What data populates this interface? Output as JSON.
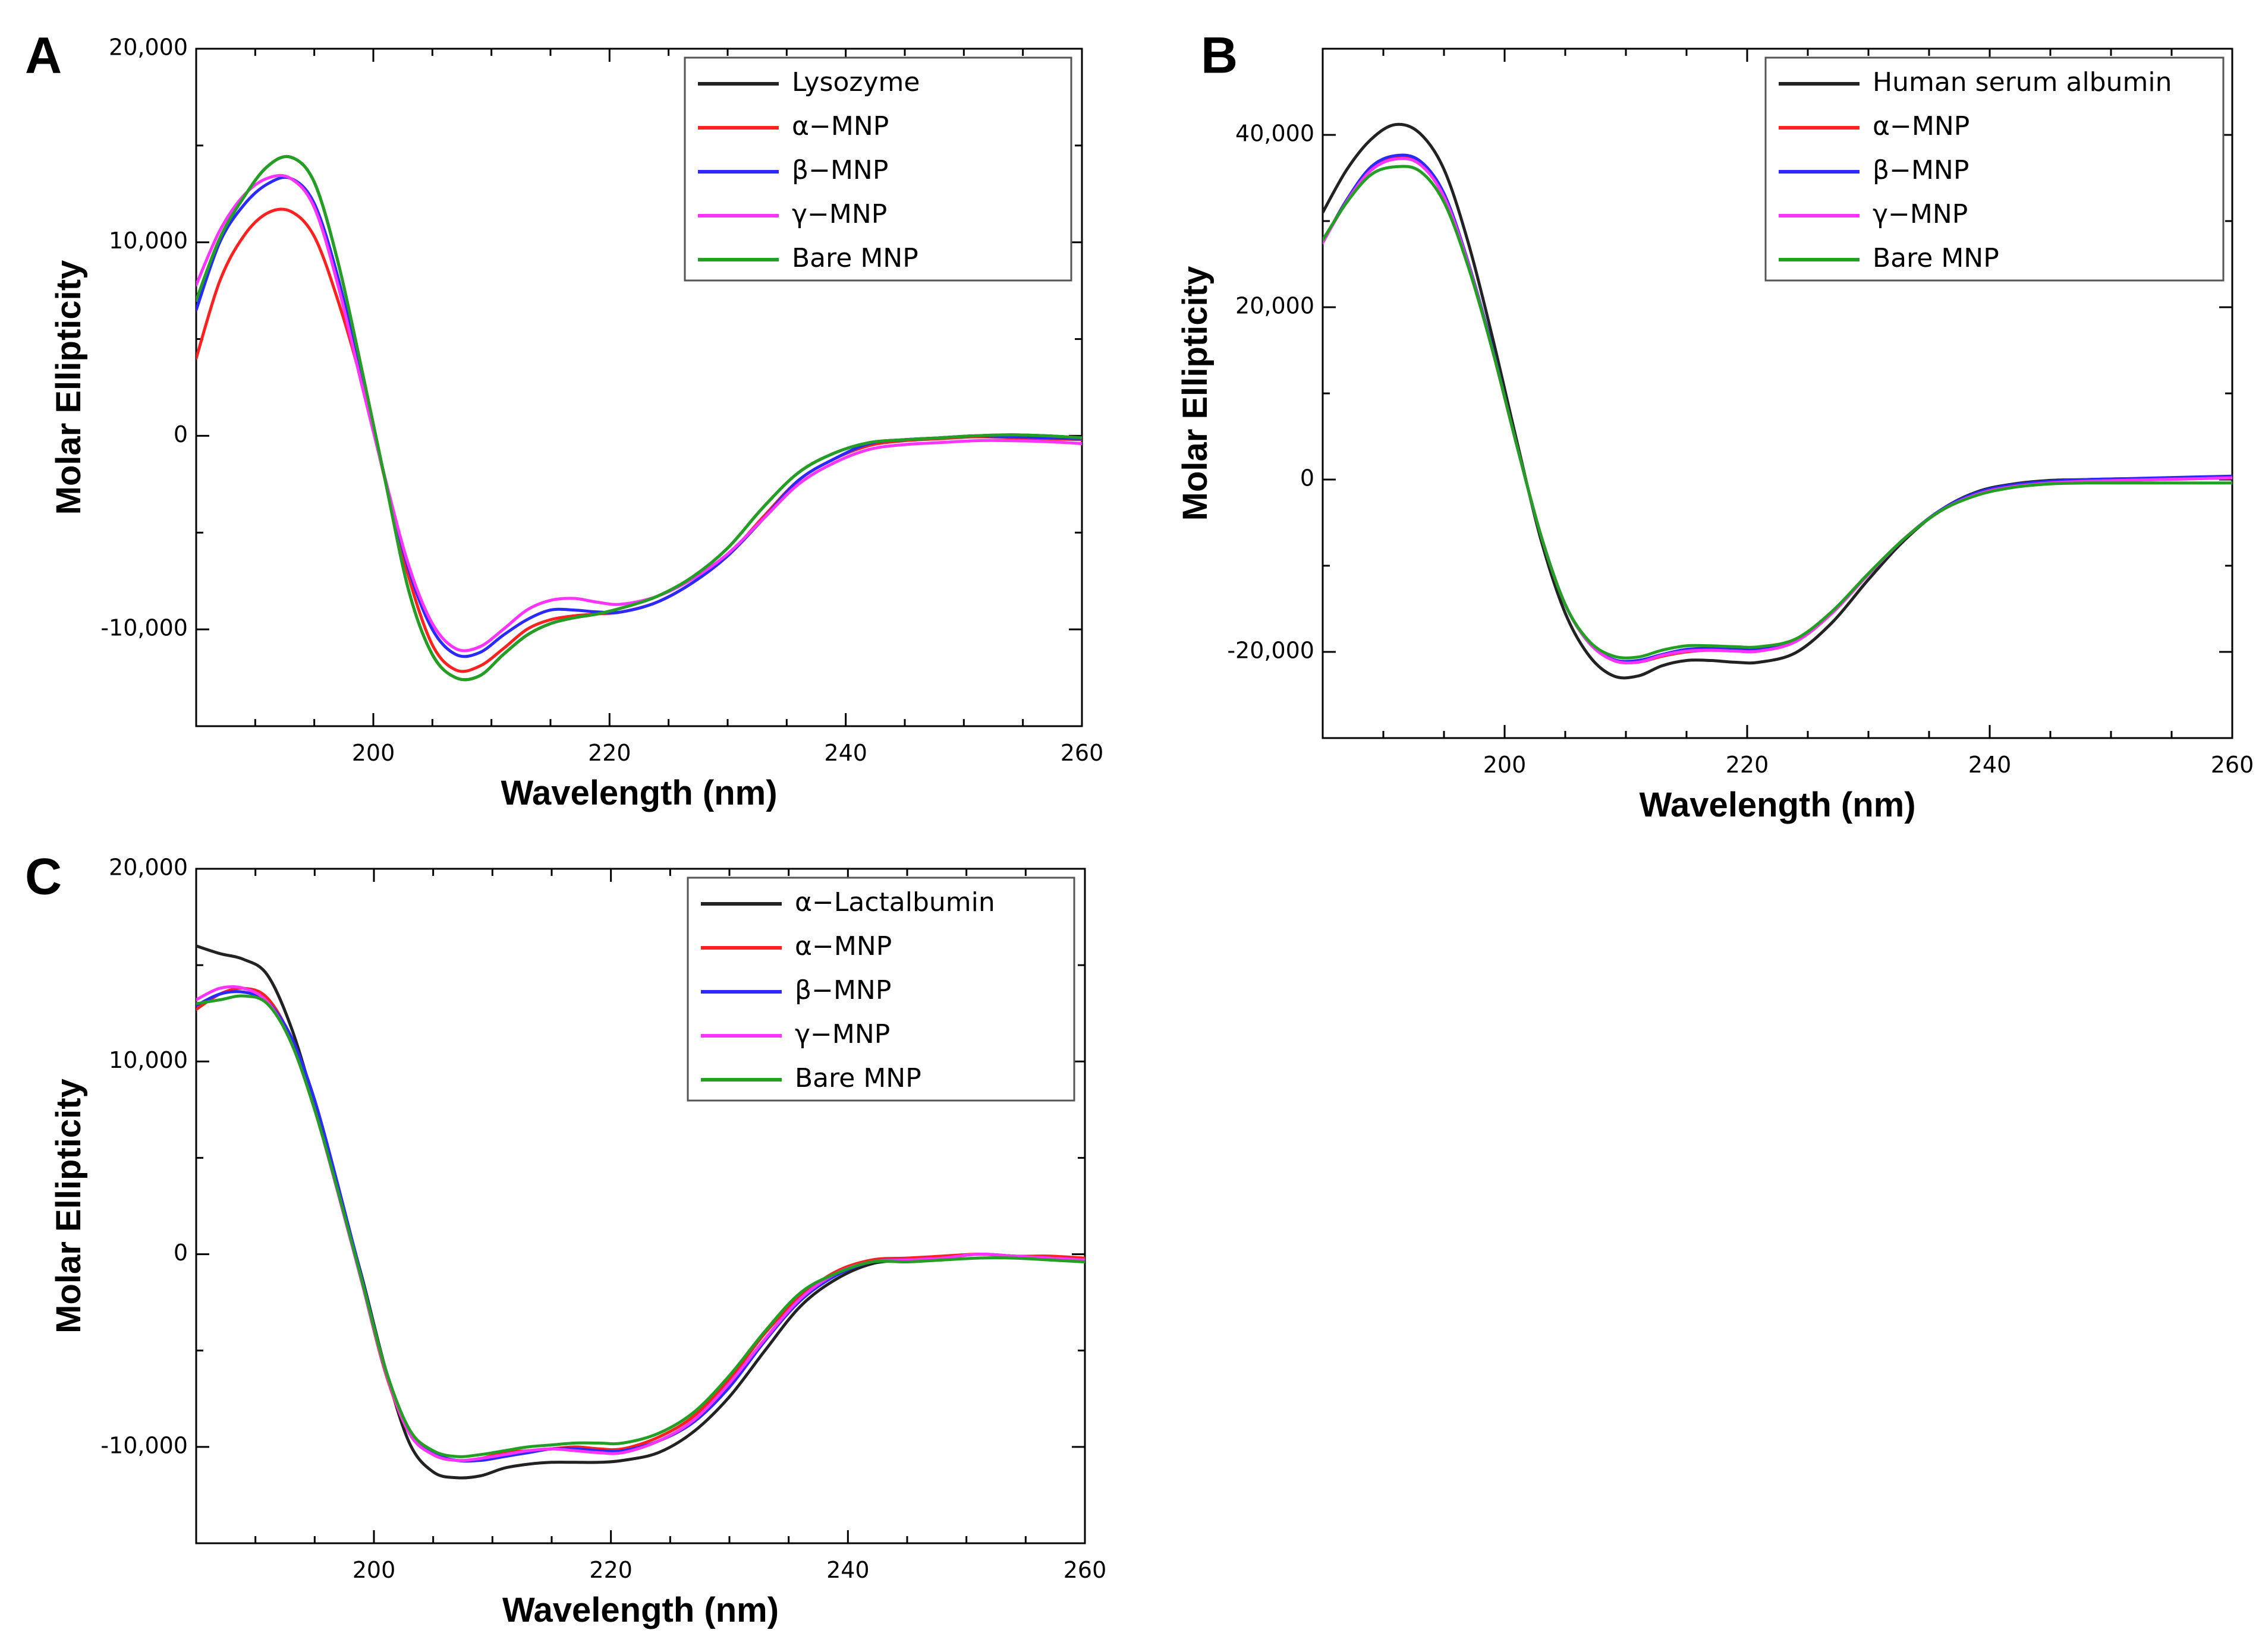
{
  "chart_data": [
    {
      "panel": "A",
      "type": "line",
      "xlabel": "Wavelength (nm)",
      "ylabel": "Molar Ellipticity",
      "xlim": [
        185,
        260
      ],
      "ylim": [
        -15000,
        20000
      ],
      "xticks": [
        200,
        220,
        240,
        260
      ],
      "xtick_labels": [
        "200",
        "220",
        "240",
        "260"
      ],
      "yticks": [
        -10000,
        0,
        10000,
        20000
      ],
      "ytick_labels": [
        "-10,000",
        "0",
        "10,000",
        "20,000"
      ],
      "legend_position": "top-right",
      "x": [
        185,
        187,
        189,
        191,
        193,
        195,
        197,
        199,
        201,
        203,
        205,
        207,
        209,
        211,
        213,
        215,
        217,
        219,
        221,
        224,
        227,
        230,
        233,
        236,
        239,
        242,
        245,
        248,
        251,
        254,
        257,
        260
      ],
      "series": [
        {
          "name": "Lysozyme",
          "color": "#222222",
          "values": [
            null,
            null,
            null,
            null,
            null,
            null,
            null,
            null,
            null,
            null,
            null,
            null,
            null,
            null,
            null,
            null,
            null,
            null,
            null,
            null,
            null,
            null,
            null,
            null,
            null,
            null,
            null,
            null,
            null,
            null,
            null,
            null
          ]
        },
        {
          "name": "α−MNP",
          "color": "#ff2020",
          "values": [
            4000,
            8000,
            10300,
            11500,
            11600,
            10300,
            7000,
            2800,
            -2300,
            -7300,
            -10800,
            -12100,
            -11900,
            -11000,
            -10000,
            -9500,
            -9300,
            -9200,
            -9100,
            -8600,
            -7600,
            -6200,
            -4200,
            -2300,
            -1200,
            -500,
            -250,
            -150,
            -50,
            -100,
            -150,
            -200
          ]
        },
        {
          "name": "β−MNP",
          "color": "#2a2aff",
          "values": [
            6500,
            10000,
            11900,
            13000,
            13300,
            12000,
            8200,
            3000,
            -2200,
            -6900,
            -10000,
            -11300,
            -11200,
            -10300,
            -9500,
            -9000,
            -9000,
            -9100,
            -9100,
            -8600,
            -7600,
            -6200,
            -4300,
            -2300,
            -1200,
            -400,
            -200,
            -100,
            0,
            -50,
            -100,
            -150
          ]
        },
        {
          "name": "γ−MNP",
          "color": "#ff33ff",
          "values": [
            7800,
            10600,
            12400,
            13300,
            13300,
            11800,
            7800,
            2700,
            -2200,
            -6700,
            -9700,
            -11000,
            -10900,
            -10000,
            -9000,
            -8500,
            -8400,
            -8600,
            -8700,
            -8300,
            -7400,
            -6100,
            -4300,
            -2500,
            -1400,
            -700,
            -450,
            -350,
            -250,
            -250,
            -300,
            -400
          ]
        },
        {
          "name": "Bare MNP",
          "color": "#23a023",
          "values": [
            7000,
            10200,
            12300,
            13900,
            14400,
            13100,
            9000,
            3500,
            -2300,
            -8000,
            -11300,
            -12500,
            -12400,
            -11300,
            -10300,
            -9700,
            -9400,
            -9200,
            -8900,
            -8300,
            -7300,
            -5800,
            -3700,
            -1900,
            -900,
            -350,
            -200,
            -100,
            0,
            50,
            0,
            -100
          ]
        }
      ]
    },
    {
      "panel": "B",
      "type": "line",
      "xlabel": "Wavelength (nm)",
      "ylabel": "Molar Ellipticity",
      "xlim": [
        185,
        260
      ],
      "ylim": [
        -30000,
        50000
      ],
      "xticks": [
        200,
        220,
        240,
        260
      ],
      "xtick_labels": [
        "200",
        "220",
        "240",
        "260"
      ],
      "yticks": [
        -20000,
        0,
        20000,
        40000
      ],
      "ytick_labels": [
        "-20,000",
        "0",
        "20,000",
        "40,000"
      ],
      "legend_position": "top-right",
      "x": [
        185,
        187,
        189,
        191,
        193,
        195,
        197,
        199,
        201,
        203,
        205,
        207,
        209,
        211,
        213,
        215,
        217,
        219,
        221,
        224,
        227,
        230,
        233,
        236,
        239,
        242,
        245,
        248,
        251,
        254,
        257,
        260
      ],
      "series": [
        {
          "name": "Human serum albumin",
          "color": "#222222",
          "values": [
            31000,
            36000,
            39500,
            41200,
            40200,
            36000,
            27500,
            16500,
            4500,
            -7000,
            -15500,
            -20500,
            -22800,
            -22800,
            -21600,
            -21000,
            -21000,
            -21200,
            -21200,
            -20100,
            -16600,
            -11600,
            -7000,
            -3500,
            -1400,
            -500,
            -100,
            0,
            100,
            100,
            200,
            300
          ]
        },
        {
          "name": "α−MNP",
          "color": "#ff2020",
          "values": [
            27500,
            32500,
            36000,
            37300,
            36800,
            33000,
            25000,
            15000,
            4000,
            -6500,
            -14500,
            -19000,
            -21000,
            -21200,
            -20500,
            -20000,
            -19800,
            -19900,
            -19900,
            -18800,
            -15500,
            -11000,
            -6800,
            -3600,
            -1700,
            -800,
            -400,
            -200,
            -100,
            0,
            100,
            200
          ]
        },
        {
          "name": "β−MNP",
          "color": "#2a2aff",
          "values": [
            27500,
            32500,
            36300,
            37600,
            37000,
            33200,
            25200,
            15200,
            4000,
            -6500,
            -14500,
            -19000,
            -20900,
            -21000,
            -20300,
            -19700,
            -19600,
            -19700,
            -19700,
            -18700,
            -15400,
            -11000,
            -6800,
            -3500,
            -1500,
            -600,
            -200,
            0,
            100,
            200,
            300,
            400
          ]
        },
        {
          "name": "γ−MNP",
          "color": "#ff33ff",
          "values": [
            27500,
            32300,
            35900,
            37200,
            36600,
            32800,
            25000,
            15000,
            4000,
            -6500,
            -14500,
            -19000,
            -21000,
            -21200,
            -20400,
            -19900,
            -19800,
            -19900,
            -19900,
            -18800,
            -15500,
            -11000,
            -6800,
            -3600,
            -1700,
            -800,
            -400,
            -200,
            -100,
            0,
            100,
            200
          ]
        },
        {
          "name": "Bare MNP",
          "color": "#23a023",
          "values": [
            27800,
            32200,
            35400,
            36300,
            35800,
            32200,
            24700,
            15000,
            4000,
            -6500,
            -14500,
            -18800,
            -20500,
            -20600,
            -19800,
            -19300,
            -19300,
            -19400,
            -19400,
            -18500,
            -15300,
            -10900,
            -6800,
            -3600,
            -1800,
            -900,
            -500,
            -400,
            -400,
            -400,
            -400,
            -400
          ]
        }
      ]
    },
    {
      "panel": "C",
      "type": "line",
      "xlabel": "Wavelength (nm)",
      "ylabel": "Molar Ellipticity",
      "xlim": [
        185,
        260
      ],
      "ylim": [
        -15000,
        20000
      ],
      "xticks": [
        200,
        220,
        240,
        260
      ],
      "xtick_labels": [
        "200",
        "220",
        "240",
        "260"
      ],
      "yticks": [
        -10000,
        0,
        10000,
        20000
      ],
      "ytick_labels": [
        "-10,000",
        "0",
        "10,000",
        "20,000"
      ],
      "legend_position": "top-right",
      "x": [
        185,
        187,
        189,
        191,
        193,
        195,
        197,
        199,
        201,
        203,
        205,
        207,
        209,
        211,
        213,
        215,
        217,
        219,
        221,
        224,
        227,
        230,
        233,
        236,
        239,
        242,
        245,
        248,
        251,
        254,
        257,
        260
      ],
      "series": [
        {
          "name": "α−Lactalbumin",
          "color": "#222222",
          "values": [
            16000,
            15600,
            15300,
            14500,
            11800,
            7800,
            3300,
            -1200,
            -6000,
            -9800,
            -11300,
            -11600,
            -11500,
            -11100,
            -10900,
            -10800,
            -10800,
            -10800,
            -10700,
            -10300,
            -9200,
            -7400,
            -5000,
            -2700,
            -1300,
            -500,
            -300,
            -150,
            0,
            -100,
            -200,
            -300
          ]
        },
        {
          "name": "α−MNP",
          "color": "#ff2020",
          "values": [
            12700,
            13500,
            13800,
            13300,
            11200,
            7600,
            3200,
            -1500,
            -6200,
            -9300,
            -10400,
            -10700,
            -10600,
            -10300,
            -10200,
            -10100,
            -10000,
            -10100,
            -10100,
            -9500,
            -8400,
            -6500,
            -4100,
            -2200,
            -900,
            -300,
            -200,
            -100,
            0,
            -100,
            -100,
            -200
          ]
        },
        {
          "name": "β−MNP",
          "color": "#2a2aff",
          "values": [
            12900,
            13500,
            13600,
            13100,
            11300,
            8000,
            3500,
            -1300,
            -6000,
            -9100,
            -10300,
            -10700,
            -10700,
            -10500,
            -10300,
            -10100,
            -10100,
            -10200,
            -10200,
            -9700,
            -8700,
            -6900,
            -4500,
            -2400,
            -1100,
            -400,
            -300,
            -200,
            0,
            -100,
            -200,
            -300
          ]
        },
        {
          "name": "γ−MNP",
          "color": "#ff33ff",
          "values": [
            13200,
            13800,
            13800,
            13100,
            11000,
            7500,
            3100,
            -1500,
            -6100,
            -9300,
            -10400,
            -10700,
            -10600,
            -10400,
            -10200,
            -10100,
            -10200,
            -10300,
            -10300,
            -9700,
            -8600,
            -6700,
            -4400,
            -2300,
            -1000,
            -400,
            -300,
            -200,
            0,
            -100,
            -200,
            -300
          ]
        },
        {
          "name": "Bare MNP",
          "color": "#23a023",
          "values": [
            13000,
            13200,
            13400,
            13000,
            11000,
            7500,
            3200,
            -1400,
            -6000,
            -9100,
            -10200,
            -10500,
            -10400,
            -10200,
            -10000,
            -9900,
            -9800,
            -9800,
            -9800,
            -9300,
            -8200,
            -6300,
            -4000,
            -2000,
            -1000,
            -400,
            -400,
            -300,
            -200,
            -200,
            -300,
            -400
          ]
        }
      ]
    }
  ]
}
